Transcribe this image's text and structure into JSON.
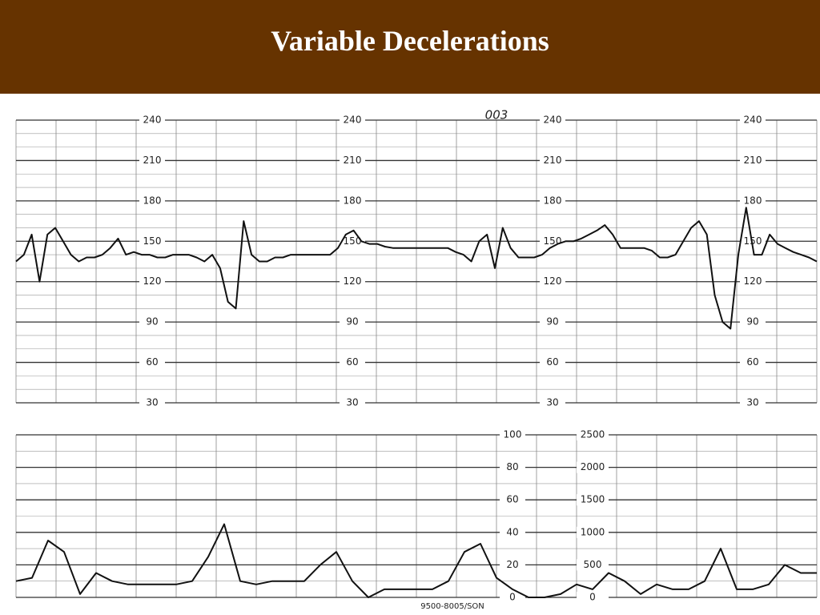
{
  "title": "Variable Decelerations",
  "strip_code": "003",
  "footer": "9500-8005/SON",
  "chart_data": [
    {
      "type": "line",
      "color": "#111111",
      "ylim": [
        30,
        240
      ],
      "yticks": [
        240,
        210,
        180,
        150,
        120,
        90,
        60,
        30
      ],
      "values": [
        135,
        140,
        155,
        120,
        155,
        160,
        150,
        140,
        135,
        138,
        138,
        140,
        145,
        152,
        140,
        142,
        140,
        140,
        138,
        138,
        140,
        140,
        140,
        138,
        135,
        140,
        130,
        105,
        100,
        165,
        140,
        135,
        135,
        138,
        138,
        140,
        140,
        140,
        140,
        140,
        140,
        145,
        155,
        158,
        150,
        148,
        148,
        146,
        145,
        145,
        145,
        145,
        145,
        145,
        145,
        145,
        142,
        140,
        135,
        150,
        155,
        130,
        160,
        145,
        138,
        138,
        138,
        140,
        145,
        148,
        150,
        150,
        152,
        155,
        158,
        162,
        155,
        145,
        145,
        145,
        145,
        143,
        138,
        138,
        140,
        150,
        160,
        165,
        155,
        110,
        90,
        85,
        140,
        175,
        140,
        140,
        155,
        148,
        145,
        142,
        140,
        138,
        135
      ]
    },
    {
      "type": "line",
      "color": "#111111",
      "ylim": [
        0,
        100
      ],
      "yticks": [
        100,
        80,
        60,
        40,
        20,
        0
      ],
      "y2lim": [
        0,
        2500
      ],
      "y2ticks": [
        2500,
        2000,
        1500,
        1000,
        500,
        0
      ],
      "values": [
        10,
        12,
        35,
        28,
        2,
        15,
        10,
        8,
        8,
        8,
        8,
        10,
        25,
        45,
        10,
        8,
        10,
        10,
        10,
        20,
        28,
        10,
        0,
        5,
        5,
        5,
        5,
        10,
        28,
        33,
        12,
        5,
        0,
        0,
        2,
        8,
        5,
        15,
        10,
        2,
        8,
        5,
        5,
        10,
        30,
        5,
        5,
        8,
        20,
        15,
        15
      ]
    }
  ]
}
